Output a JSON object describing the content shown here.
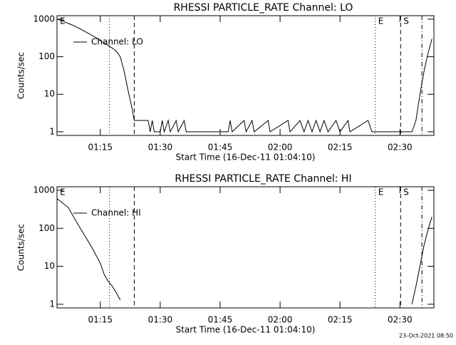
{
  "chart_data": [
    {
      "type": "line",
      "title": "RHESSI PARTICLE_RATE Channel: LO",
      "xlabel": "Start Time (16-Dec-11 01:04:10)",
      "ylabel": "Counts/sec",
      "log_y": true,
      "xlim": [
        "01:04:10",
        "02:38:30"
      ],
      "xticks": [
        "01:15",
        "01:30",
        "01:45",
        "02:00",
        "02:15",
        "02:30"
      ],
      "ylim": [
        0.8,
        1240
      ],
      "yticks": [
        1,
        10,
        100,
        1000
      ],
      "legend": "upper left",
      "x": [
        "01:04:10",
        "01:05",
        "01:06",
        "01:08",
        "01:10",
        "01:12",
        "01:14",
        "01:16",
        "01:18",
        "01:19",
        "01:20",
        "01:21",
        "01:22",
        "01:23",
        "01:23:30",
        "01:27",
        "01:27:30",
        "01:28",
        "01:28:30",
        "01:30",
        "01:30:30",
        "01:31",
        "01:32",
        "01:32:30",
        "01:34",
        "01:34:30",
        "01:36",
        "01:36:30",
        "01:47",
        "01:47:30",
        "01:48",
        "01:51",
        "01:51:30",
        "01:53",
        "01:53:30",
        "01:57",
        "01:57:30",
        "02:02",
        "02:02:30",
        "02:05",
        "02:06",
        "02:07",
        "02:08",
        "02:09",
        "02:10",
        "02:11",
        "02:12",
        "02:14",
        "02:15",
        "02:17",
        "02:17:30",
        "02:22",
        "02:23",
        "02:33",
        "02:34",
        "02:35",
        "02:36",
        "02:37",
        "02:38"
      ],
      "series": [
        {
          "name": "Channel: LO",
          "color": "#000000",
          "values": [
            1000,
            950,
            850,
            700,
            550,
            420,
            320,
            230,
            170,
            140,
            100,
            40,
            12,
            4,
            2,
            2,
            1,
            2,
            1,
            1,
            2,
            1,
            2,
            1,
            2,
            1,
            2,
            1,
            1,
            2,
            1,
            2,
            1,
            2,
            1,
            2,
            1,
            2,
            1,
            2,
            1,
            2,
            1,
            2,
            1,
            2,
            1,
            2,
            1,
            2,
            1,
            2,
            1,
            1,
            2,
            10,
            40,
            120,
            300
          ]
        }
      ],
      "events": [
        {
          "x": "01:17:18",
          "style": "dotted"
        },
        {
          "x": "01:23:30",
          "style": "dashed"
        },
        {
          "x": "02:23:50",
          "style": "dotted"
        },
        {
          "x": "02:30:10",
          "style": "dashed"
        },
        {
          "x": "02:35:30",
          "style": "dash-dot"
        }
      ],
      "annotations": [
        {
          "x": "01:04:10",
          "text": "E"
        },
        {
          "x": "02:23:50",
          "text": "E"
        },
        {
          "x": "02:30:10",
          "text": "S"
        }
      ]
    },
    {
      "type": "line",
      "title": "RHESSI PARTICLE_RATE Channel: HI",
      "xlabel": "Start Time (16-Dec-11 01:04:10)",
      "ylabel": "Counts/sec",
      "log_y": true,
      "xlim": [
        "01:04:10",
        "02:38:30"
      ],
      "xticks": [
        "01:15",
        "01:30",
        "01:45",
        "02:00",
        "02:15",
        "02:30"
      ],
      "ylim": [
        0.8,
        1240
      ],
      "yticks": [
        1,
        10,
        100,
        1000
      ],
      "legend": "upper left",
      "x": [
        "01:04:10",
        "01:05",
        "01:07",
        "01:09",
        "01:10",
        "01:12",
        "01:13",
        "01:15",
        "01:16",
        "01:17",
        "01:18",
        "01:19",
        "01:20",
        "01:21",
        "02:33",
        "02:34",
        "02:35",
        "02:36",
        "02:37",
        "02:38"
      ],
      "series": [
        {
          "name": "Channel: HI",
          "color": "#000000",
          "values": [
            600,
            520,
            350,
            150,
            100,
            45,
            30,
            12,
            6,
            4,
            3,
            2,
            1.3,
            null,
            1,
            3,
            10,
            35,
            90,
            200
          ]
        }
      ],
      "events": [
        {
          "x": "01:17:18",
          "style": "dotted"
        },
        {
          "x": "01:23:30",
          "style": "dashed"
        },
        {
          "x": "02:23:50",
          "style": "dotted"
        },
        {
          "x": "02:30:10",
          "style": "dashed"
        },
        {
          "x": "02:35:30",
          "style": "dash-dot"
        }
      ],
      "annotations": [
        {
          "x": "01:04:10",
          "text": "E"
        },
        {
          "x": "02:23:50",
          "text": "E"
        },
        {
          "x": "02:30:10",
          "text": "S"
        }
      ]
    }
  ],
  "footer": "23-Oct-2021 08:50"
}
